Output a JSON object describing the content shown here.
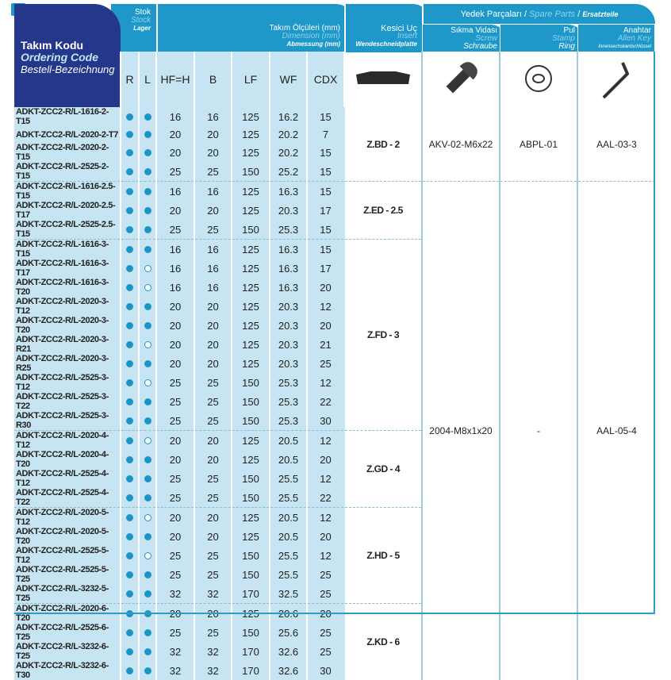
{
  "header": {
    "code": {
      "tr": "Takım Kodu",
      "en": "Ordering Code",
      "de": "Bestell-Bezeichnung"
    },
    "stock": {
      "tr": "Stok",
      "en": "Stock",
      "de": "Lager"
    },
    "dimension": {
      "tr": "Takım Ölçüleri (mm)",
      "en": "Dimension (mm)",
      "de": "Abmessung (mm)"
    },
    "insert": {
      "tr": "Kesici Uç",
      "en": "Insert",
      "de": "Wendeschneidplatte"
    },
    "spare": {
      "tr": "Yedek Parçaları",
      "en": "Spare Parts",
      "de": "Ersatzteile",
      "sep": " / "
    },
    "screw": {
      "tr": "Sıkma Vidası",
      "en": "Screw",
      "de": "Schraube"
    },
    "stamp": {
      "tr": "Pul",
      "en": "Stamp",
      "de": "Ring"
    },
    "key": {
      "tr": "Anahtar",
      "en": "Allen Key",
      "de": "Innensechskantschlüssel"
    },
    "columns": [
      "R",
      "L",
      "HF=H",
      "B",
      "LF",
      "WF",
      "CDX"
    ]
  },
  "colors": {
    "header": "#1e98c8",
    "code_header": "#25378a",
    "row_fill": "#c6e4f1",
    "dot": "#1a96c6"
  },
  "rows": [
    [
      "ADKT-ZCC2-R/L-1616-2-T15",
      1,
      1,
      "16",
      "16",
      "125",
      "16.2",
      "15"
    ],
    [
      "ADKT-ZCC2-R/L-2020-2-T7",
      1,
      1,
      "20",
      "20",
      "125",
      "20.2",
      "7"
    ],
    [
      "ADKT-ZCC2-R/L-2020-2-T15",
      1,
      1,
      "20",
      "20",
      "125",
      "20.2",
      "15"
    ],
    [
      "ADKT-ZCC2-R/L-2525-2-T15",
      1,
      1,
      "25",
      "25",
      "150",
      "25.2",
      "15"
    ],
    [
      "ADKT-ZCC2-R/L-1616-2.5-T15",
      1,
      1,
      "16",
      "16",
      "125",
      "16.3",
      "15"
    ],
    [
      "ADKT-ZCC2-R/L-2020-2.5-T17",
      1,
      1,
      "20",
      "20",
      "125",
      "20.3",
      "17"
    ],
    [
      "ADKT-ZCC2-R/L-2525-2.5-T15",
      1,
      1,
      "25",
      "25",
      "150",
      "25.3",
      "15"
    ],
    [
      "ADKT-ZCC2-R/L-1616-3-T15",
      1,
      1,
      "16",
      "16",
      "125",
      "16.3",
      "15"
    ],
    [
      "ADKT-ZCC2-R/L-1616-3-T17",
      1,
      0,
      "16",
      "16",
      "125",
      "16.3",
      "17"
    ],
    [
      "ADKT-ZCC2-R/L-1616-3-T20",
      1,
      0,
      "16",
      "16",
      "125",
      "16.3",
      "20"
    ],
    [
      "ADKT-ZCC2-R/L-2020-3-T12",
      1,
      1,
      "20",
      "20",
      "125",
      "20.3",
      "12"
    ],
    [
      "ADKT-ZCC2-R/L-2020-3-T20",
      1,
      1,
      "20",
      "20",
      "125",
      "20.3",
      "20"
    ],
    [
      "ADKT-ZCC2-R/L-2020-3-R21",
      1,
      0,
      "20",
      "20",
      "125",
      "20.3",
      "21"
    ],
    [
      "ADKT-ZCC2-R/L-2020-3-R25",
      1,
      1,
      "20",
      "20",
      "125",
      "20.3",
      "25"
    ],
    [
      "ADKT-ZCC2-R/L-2525-3-T12",
      1,
      0,
      "25",
      "25",
      "150",
      "25.3",
      "12"
    ],
    [
      "ADKT-ZCC2-R/L-2525-3-T22",
      1,
      1,
      "25",
      "25",
      "150",
      "25.3",
      "22"
    ],
    [
      "ADKT-ZCC2-R/L-2525-3-R30",
      1,
      1,
      "25",
      "25",
      "150",
      "25.3",
      "30"
    ],
    [
      "ADKT-ZCC2-R/L-2020-4-T12",
      1,
      0,
      "20",
      "20",
      "125",
      "20.5",
      "12"
    ],
    [
      "ADKT-ZCC2-R/L-2020-4-T20",
      1,
      1,
      "20",
      "20",
      "125",
      "20.5",
      "20"
    ],
    [
      "ADKT-ZCC2-R/L-2525-4-T12",
      1,
      1,
      "25",
      "25",
      "150",
      "25.5",
      "12"
    ],
    [
      "ADKT-ZCC2-R/L-2525-4-T22",
      1,
      1,
      "25",
      "25",
      "150",
      "25.5",
      "22"
    ],
    [
      "ADKT-ZCC2-R/L-2020-5-T12",
      1,
      0,
      "20",
      "20",
      "125",
      "20.5",
      "12"
    ],
    [
      "ADKT-ZCC2-R/L-2020-5-T20",
      1,
      1,
      "20",
      "20",
      "125",
      "20.5",
      "20"
    ],
    [
      "ADKT-ZCC2-R/L-2525-5-T12",
      1,
      0,
      "25",
      "25",
      "150",
      "25.5",
      "12"
    ],
    [
      "ADKT-ZCC2-R/L-2525-5-T25",
      1,
      1,
      "25",
      "25",
      "150",
      "25.5",
      "25"
    ],
    [
      "ADKT-ZCC2-R/L-3232-5-T25",
      1,
      1,
      "32",
      "32",
      "170",
      "32.5",
      "25"
    ],
    [
      "ADKT-ZCC2-R/L-2020-6-T20",
      1,
      1,
      "20",
      "20",
      "125",
      "20.6",
      "20"
    ],
    [
      "ADKT-ZCC2-R/L-2525-6-T25",
      1,
      1,
      "25",
      "25",
      "150",
      "25.6",
      "25"
    ],
    [
      "ADKT-ZCC2-R/L-3232-6-T25",
      1,
      1,
      "32",
      "32",
      "170",
      "32.6",
      "25"
    ],
    [
      "ADKT-ZCC2-R/L-3232-6-T30",
      1,
      1,
      "32",
      "32",
      "170",
      "32.6",
      "30"
    ]
  ],
  "inserts": [
    {
      "label": "Z.BD - 2",
      "rows": 4
    },
    {
      "label": "Z.ED - 2.5",
      "rows": 3
    },
    {
      "label": "Z.FD - 3",
      "rows": 10
    },
    {
      "label": "Z.GD - 4",
      "rows": 4
    },
    {
      "label": "Z.HD - 5",
      "rows": 5
    },
    {
      "label": "Z.KD - 6",
      "rows": 4
    }
  ],
  "spares": [
    {
      "screw": "AKV-02-M6x22",
      "stamp": "ABPL-01",
      "key": "AAL-03-3",
      "rows": 4
    },
    {
      "screw": "2004-M8x1x20",
      "stamp": "-",
      "key": "AAL-05-4",
      "rows": 26
    }
  ],
  "icons": [
    "insert-icon",
    "screw-icon",
    "washer-icon",
    "allen-key-icon"
  ]
}
